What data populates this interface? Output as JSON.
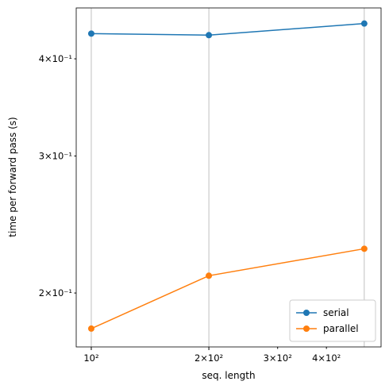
{
  "chart_data": {
    "type": "line",
    "xlabel": "seq. length",
    "ylabel": "time per forward pass (s)",
    "x": [
      100,
      200,
      500
    ],
    "series": [
      {
        "name": "serial",
        "color": "#1f77b4",
        "values": [
          0.431,
          0.429,
          0.444
        ]
      },
      {
        "name": "parallel",
        "color": "#ff7f0e",
        "values": [
          0.18,
          0.2105,
          0.228
        ]
      }
    ],
    "xscale": "log",
    "yscale": "log",
    "xlim": [
      91.5,
      552
    ],
    "ylim": [
      0.1705,
      0.465
    ],
    "xticks": [
      {
        "value": 100,
        "label": "10²"
      },
      {
        "value": 200,
        "label": "2×10²"
      },
      {
        "value": 300,
        "label": "3×10²"
      },
      {
        "value": 400,
        "label": "4×10²"
      }
    ],
    "xgrid": [
      100,
      200,
      500
    ],
    "yticks": [
      {
        "value": 0.2,
        "label": "2×10⁻¹"
      },
      {
        "value": 0.3,
        "label": "3×10⁻¹"
      },
      {
        "value": 0.4,
        "label": "4×10⁻¹"
      }
    ],
    "legend": "lower right"
  }
}
